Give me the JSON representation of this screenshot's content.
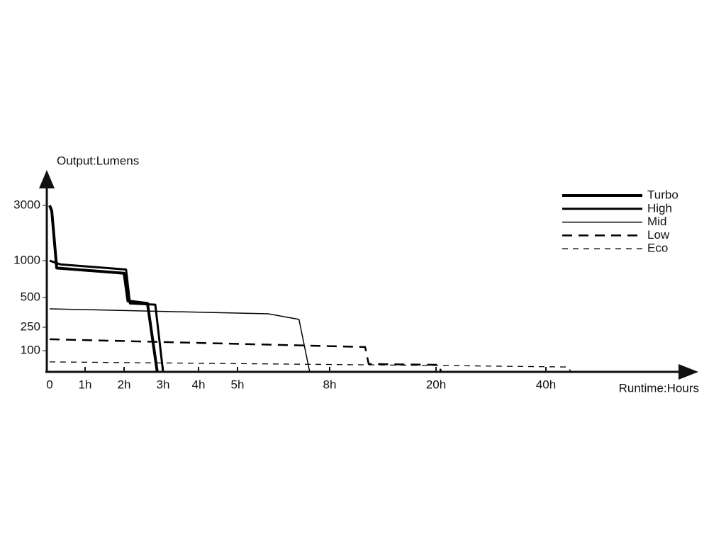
{
  "chart_data": {
    "type": "line",
    "y_label": "Output:Lumens",
    "x_label": "Runtime:Hours",
    "xlim": [
      0,
      66
    ],
    "xticks": [
      0,
      {
        "value": 1,
        "label": "1h"
      },
      {
        "value": 2,
        "label": "2h"
      },
      {
        "value": 3,
        "label": "3h"
      },
      {
        "value": 4,
        "label": "4h"
      },
      {
        "value": 5,
        "label": "5h"
      },
      {
        "value": 8,
        "label": "8h"
      },
      {
        "value": 20,
        "label": "20h"
      },
      {
        "value": 40,
        "label": "40h"
      }
    ],
    "ylim": [
      0,
      4000
    ],
    "yticks": [
      100,
      250,
      500,
      1000,
      3000
    ],
    "legend": "upper right",
    "series": [
      {
        "name": "Turbo",
        "color": "#000000",
        "line_style": "solid",
        "x": [
          0,
          0.06,
          0.2,
          2.0,
          2.1,
          2.6,
          2.85
        ],
        "values": [
          3000,
          2800,
          900,
          830,
          470,
          450,
          0
        ]
      },
      {
        "name": "High",
        "color": "#000000",
        "line_style": "solid",
        "x": [
          0,
          0.3,
          2.05,
          2.15,
          2.8,
          3.0
        ],
        "values": [
          1000,
          950,
          880,
          450,
          440,
          0
        ]
      },
      {
        "name": "Mid",
        "color": "#000000",
        "line_style": "solid",
        "x": [
          0,
          6.0,
          7.0,
          7.35
        ],
        "values": [
          405,
          363,
          316,
          0
        ]
      },
      {
        "name": "Low",
        "color": "#000000",
        "line_style": "dashed",
        "x": [
          0,
          12.0,
          12.4,
          20.6,
          20.9
        ],
        "values": [
          173,
          123,
          37,
          33,
          0
        ]
      },
      {
        "name": "Eco",
        "color": "#000000",
        "line_style": "dashed",
        "x": [
          0,
          20.6,
          43.9,
          44.5
        ],
        "values": [
          47,
          30,
          23,
          0
        ]
      }
    ]
  }
}
